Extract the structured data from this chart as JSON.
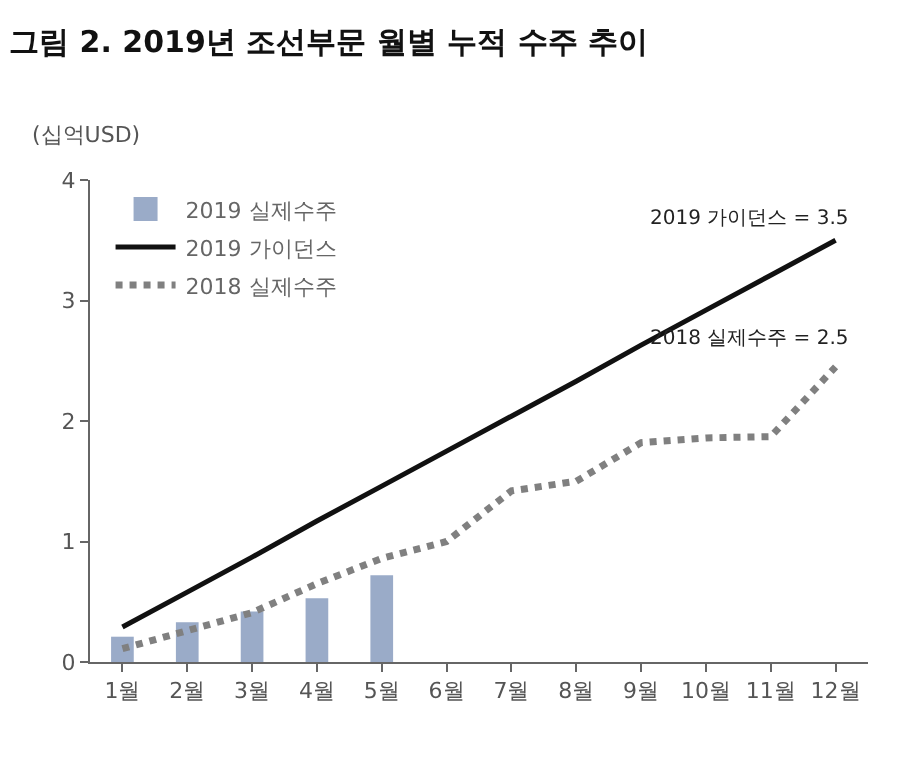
{
  "chart_data": {
    "type": "bar",
    "title": "그림 2. 2019년 조선부문 월별 누적 수주 추이",
    "ylabel": "(십억USD)",
    "categories": [
      "1월",
      "2월",
      "3월",
      "4월",
      "5월",
      "6월",
      "7월",
      "8월",
      "9월",
      "10월",
      "11월",
      "12월"
    ],
    "series": [
      {
        "name": "2019 실제수주",
        "color": "#9aabc8",
        "values": [
          0.21,
          0.33,
          0.42,
          0.53,
          0.72,
          null,
          null,
          null,
          null,
          null,
          null,
          null
        ]
      },
      {
        "name": "2019 가이던스",
        "type": "line",
        "color": "#111111",
        "line_style": "solid",
        "values": [
          0.29,
          0.58,
          0.87,
          1.17,
          1.46,
          1.75,
          2.04,
          2.33,
          2.63,
          2.92,
          3.21,
          3.5
        ]
      },
      {
        "name": "2018 실제수주",
        "type": "line",
        "color": "#808080",
        "line_style": "dotted",
        "values": [
          0.11,
          0.26,
          0.41,
          0.65,
          0.86,
          1.0,
          1.42,
          1.5,
          1.82,
          1.86,
          1.87,
          2.45
        ]
      }
    ],
    "ylim": [
      0,
      4
    ],
    "yticks": [
      0,
      1,
      2,
      3,
      4
    ],
    "grid": false,
    "legend": "top left",
    "marker": "none",
    "annotations": [
      {
        "text": "2019 가이던스 = 3.5",
        "x": "12월",
        "y": 3.5
      },
      {
        "text": "2018 실제수주 = 2.5",
        "x": "12월",
        "y": 2.5
      }
    ]
  }
}
